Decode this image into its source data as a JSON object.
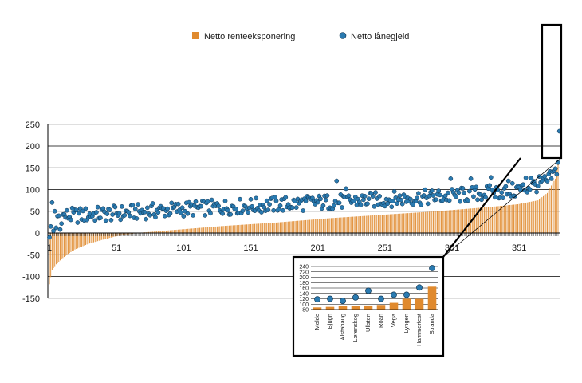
{
  "chart_data": [
    {
      "type": "bar",
      "role": "main",
      "x_tick_labels": [
        "1",
        "51",
        "101",
        "151",
        "201",
        "251",
        "301",
        "351"
      ],
      "ylim": [
        -150,
        250
      ],
      "y_ticks": [
        250,
        200,
        150,
        100,
        50,
        0,
        -50,
        -100,
        -150
      ],
      "grid": true,
      "legend_position": "top",
      "legend": [
        {
          "name": "Netto renteeksponering",
          "marker": "bar",
          "color": "#e08a2e"
        },
        {
          "name": "Netto lånegjeld",
          "marker": "circle",
          "color": "#2a7ab0"
        }
      ],
      "series": [
        {
          "name": "Netto renteeksponering",
          "type": "bar",
          "color": "#e08a2e",
          "n_points": 380,
          "curve": [
            [
              1,
              -118
            ],
            [
              3,
              -85
            ],
            [
              6,
              -72
            ],
            [
              10,
              -60
            ],
            [
              15,
              -48
            ],
            [
              20,
              -38
            ],
            [
              30,
              -25
            ],
            [
              40,
              -16
            ],
            [
              50,
              -8
            ],
            [
              60,
              -3
            ],
            [
              70,
              1
            ],
            [
              90,
              6
            ],
            [
              110,
              11
            ],
            [
              130,
              16
            ],
            [
              150,
              20
            ],
            [
              170,
              24
            ],
            [
              190,
              29
            ],
            [
              210,
              34
            ],
            [
              230,
              38
            ],
            [
              250,
              42
            ],
            [
              270,
              46
            ],
            [
              290,
              50
            ],
            [
              310,
              55
            ],
            [
              330,
              60
            ],
            [
              350,
              66
            ],
            [
              365,
              75
            ],
            [
              372,
              92
            ],
            [
              376,
              115
            ],
            [
              378,
              125
            ],
            [
              380,
              165
            ]
          ]
        },
        {
          "name": "Netto lånegjeld",
          "type": "scatter",
          "color": "#2a7ab0",
          "trend": [
            [
              1,
              38
            ],
            [
              20,
              40
            ],
            [
              50,
              45
            ],
            [
              100,
              55
            ],
            [
              150,
              62
            ],
            [
              200,
              70
            ],
            [
              250,
              77
            ],
            [
              300,
              85
            ],
            [
              350,
              98
            ],
            [
              372,
              118
            ],
            [
              377,
              135
            ],
            [
              380,
              160
            ]
          ],
          "notable_points": [
            [
              1,
              -10
            ],
            [
              2,
              15
            ],
            [
              3,
              70
            ],
            [
              4,
              5
            ],
            [
              6,
              12
            ],
            [
              9,
              8
            ],
            [
              215,
              120
            ],
            [
              222,
              102
            ],
            [
              300,
              125
            ],
            [
              315,
              125
            ],
            [
              330,
              128
            ],
            [
              343,
              120
            ],
            [
              350,
              108
            ],
            [
              356,
              127
            ],
            [
              360,
              126
            ],
            [
              375,
              125
            ],
            [
              378,
              148
            ],
            [
              379,
              135
            ],
            [
              380,
              162
            ],
            [
              381,
              234
            ]
          ]
        }
      ]
    },
    {
      "type": "bar",
      "role": "inset",
      "categories": [
        "Molde",
        "Bjugn",
        "Alstahaug",
        "Lørenskog",
        "Ullsten",
        "Roan",
        "Vega",
        "Lyngen",
        "Hammerfest",
        "Strandа"
      ],
      "ylim": [
        80,
        240
      ],
      "y_ticks": [
        240,
        220,
        200,
        180,
        160,
        140,
        120,
        100,
        80
      ],
      "grid": true,
      "series": [
        {
          "name": "Netto renteeksponering",
          "type": "bar",
          "color": "#e08a2e",
          "values": [
            88,
            90,
            92,
            93,
            95,
            97,
            105,
            120,
            120,
            165
          ]
        },
        {
          "name": "Netto lånegjeld",
          "type": "scatter",
          "color": "#2a7ab0",
          "values": [
            118,
            120,
            112,
            125,
            150,
            120,
            135,
            135,
            162,
            234
          ]
        }
      ]
    }
  ]
}
